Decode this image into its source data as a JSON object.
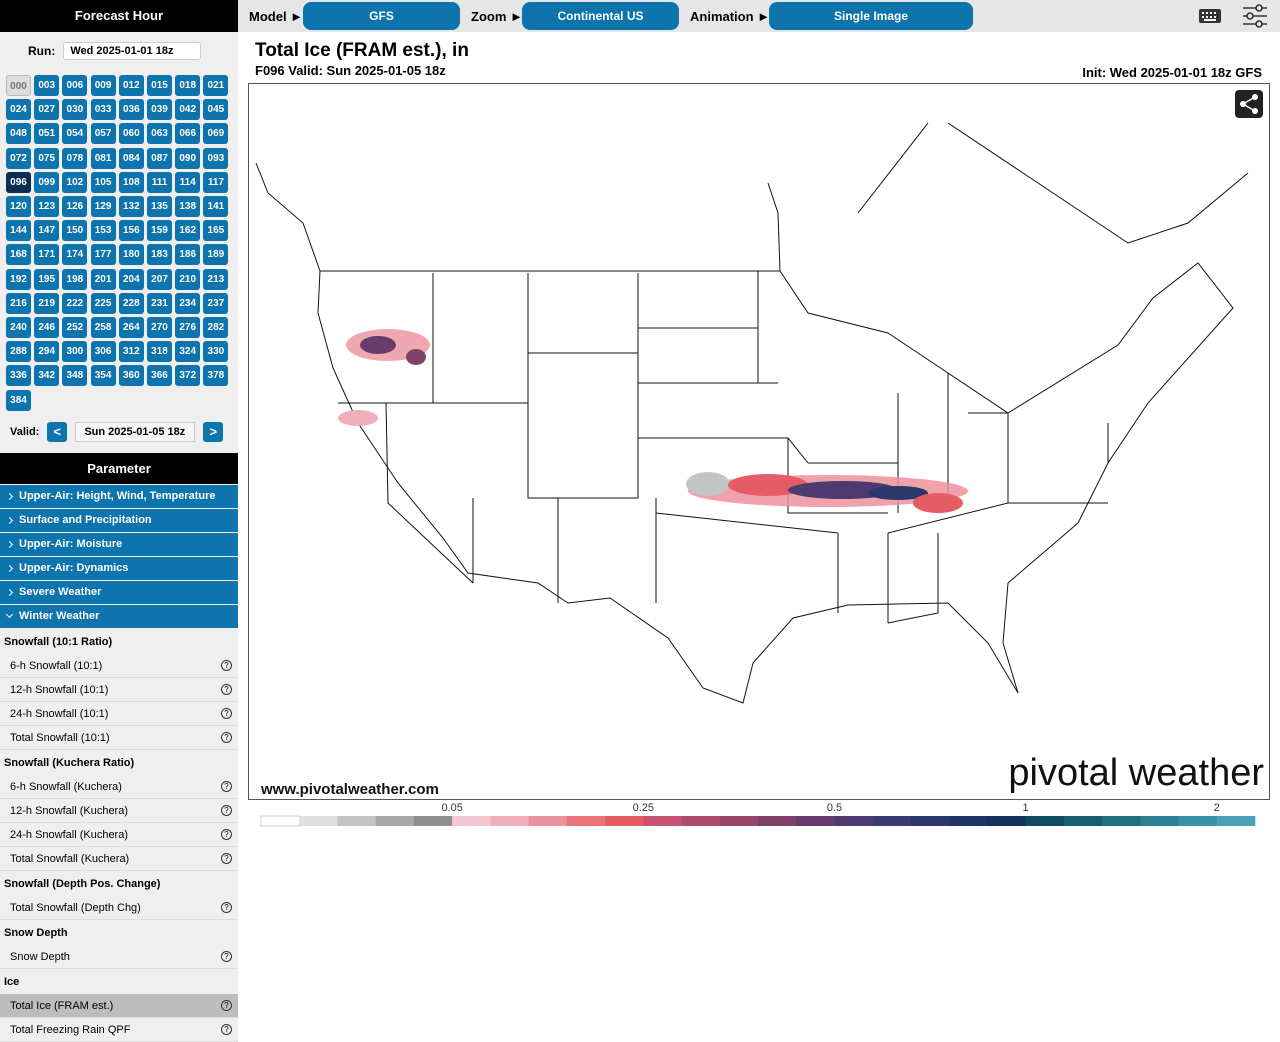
{
  "sidebar": {
    "forecast_hour_title": "Forecast Hour",
    "run_label": "Run:",
    "run_value": "Wed 2025-01-01 18z",
    "hours": [
      "000",
      "003",
      "006",
      "009",
      "012",
      "015",
      "018",
      "021",
      "024",
      "027",
      "030",
      "033",
      "036",
      "039",
      "042",
      "045",
      "048",
      "051",
      "054",
      "057",
      "060",
      "063",
      "066",
      "069",
      "072",
      "075",
      "078",
      "081",
      "084",
      "087",
      "090",
      "093",
      "096",
      "099",
      "102",
      "105",
      "108",
      "111",
      "114",
      "117",
      "120",
      "123",
      "126",
      "129",
      "132",
      "135",
      "138",
      "141",
      "144",
      "147",
      "150",
      "153",
      "156",
      "159",
      "162",
      "165",
      "168",
      "171",
      "174",
      "177",
      "180",
      "183",
      "186",
      "189",
      "192",
      "195",
      "198",
      "201",
      "204",
      "207",
      "210",
      "213",
      "216",
      "219",
      "222",
      "225",
      "228",
      "231",
      "234",
      "237",
      "240",
      "246",
      "252",
      "258",
      "264",
      "270",
      "276",
      "282",
      "288",
      "294",
      "300",
      "306",
      "312",
      "318",
      "324",
      "330",
      "336",
      "342",
      "348",
      "354",
      "360",
      "366",
      "372",
      "378",
      "384"
    ],
    "active_hour": "096",
    "unavailable_hour": "000",
    "valid_label": "Valid:",
    "prev": "<",
    "valid_value": "Sun 2025-01-05 18z",
    "next": ">",
    "parameter_title": "Parameter",
    "categories": [
      "Upper-Air: Height, Wind, Temperature",
      "Surface and Precipitation",
      "Upper-Air: Moisture",
      "Upper-Air: Dynamics",
      "Severe Weather",
      "Winter Weather"
    ],
    "expanded_category": "Winter Weather",
    "help_icon": "?",
    "groups": [
      {
        "title": "Snowfall (10:1 Ratio)",
        "items": [
          "6-h Snowfall (10:1)",
          "12-h Snowfall (10:1)",
          "24-h Snowfall (10:1)",
          "Total Snowfall (10:1)"
        ]
      },
      {
        "title": "Snowfall (Kuchera Ratio)",
        "items": [
          "6-h Snowfall (Kuchera)",
          "12-h Snowfall (Kuchera)",
          "24-h Snowfall (Kuchera)",
          "Total Snowfall (Kuchera)"
        ]
      },
      {
        "title": "Snowfall (Depth Pos. Change)",
        "items": [
          "Total Snowfall (Depth Chg)"
        ]
      },
      {
        "title": "Snow Depth",
        "items": [
          "Snow Depth"
        ]
      },
      {
        "title": "Ice",
        "items": [
          "Total Ice (FRAM est.)",
          "Total Freezing Rain QPF"
        ]
      }
    ],
    "active_item": "Total Ice (FRAM est.)"
  },
  "topbar": {
    "model_label": "Model ►",
    "model_value": "GFS",
    "zoom_label": "Zoom ►",
    "zoom_value": "Continental US",
    "animation_label": "Animation ►",
    "animation_value": "Single Image"
  },
  "map": {
    "title": "Total Ice (FRAM est.), in",
    "subtitle": "F096 Valid: Sun 2025-01-05 18z",
    "init": "Init: Wed 2025-01-01 18z GFS",
    "website": "www.pivotalweather.com",
    "logo": "pivotal weather",
    "colorbar": {
      "ticks": [
        0.05,
        0.25,
        0.5,
        1,
        2
      ],
      "colors": [
        "#ffffff",
        "#e0e0e0",
        "#c4c4c4",
        "#a8a8a8",
        "#8e8e8e",
        "#f4c8d2",
        "#f0afba",
        "#ec929c",
        "#ea737c",
        "#e65c64",
        "#c85272",
        "#b04b6d",
        "#98466a",
        "#7f4169",
        "#683d6b",
        "#4c3a70",
        "#3a3a72",
        "#2a386c",
        "#1d3465",
        "#15305c",
        "#0f4a5e",
        "#165f6f",
        "#1f6f80",
        "#2a8193",
        "#3891a5",
        "#4aa0b4"
      ]
    }
  }
}
